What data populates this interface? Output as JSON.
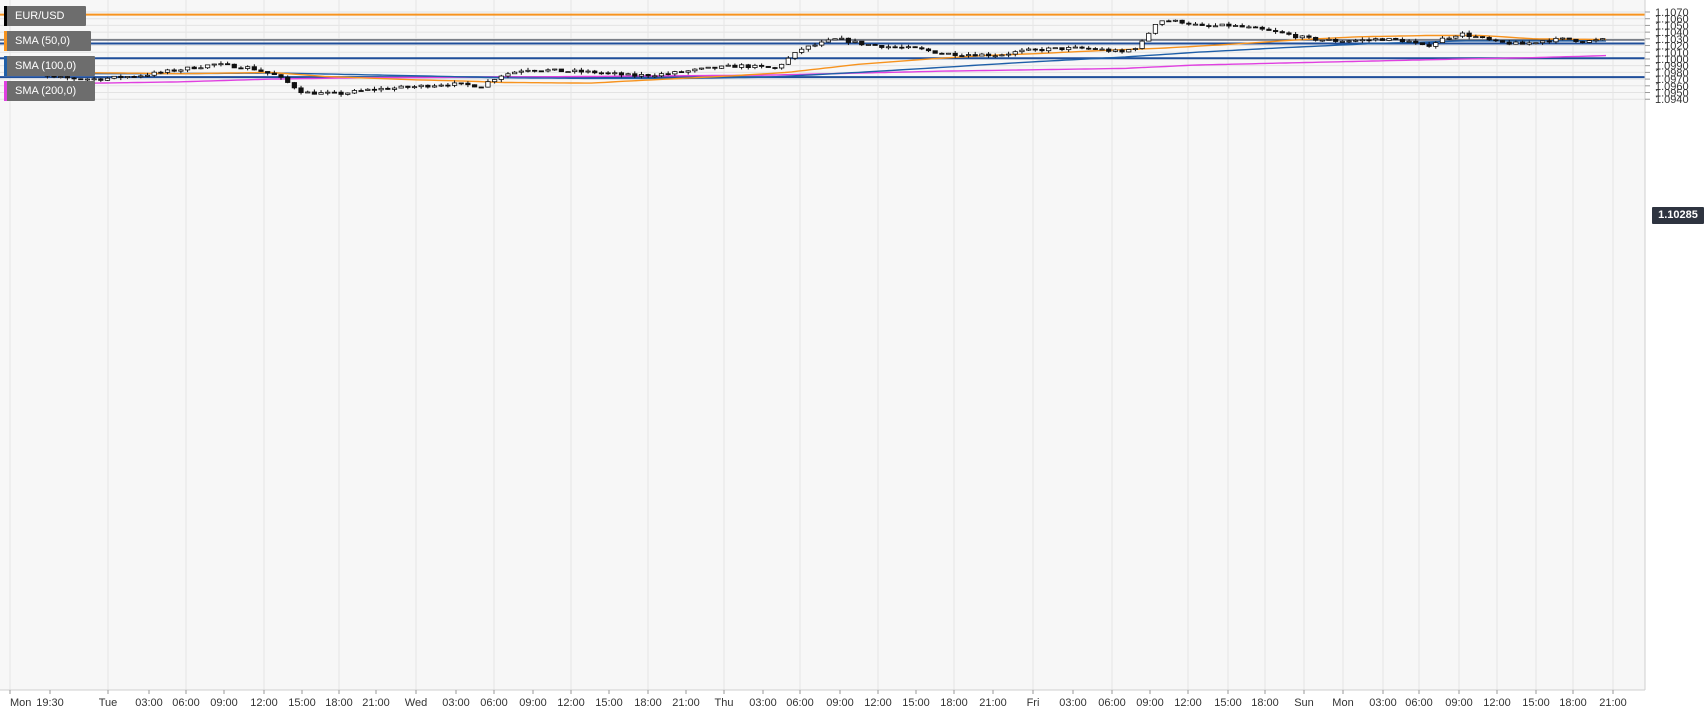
{
  "legend": [
    {
      "label": "EUR/USD",
      "color": "#000000"
    },
    {
      "label": "SMA (50,0)",
      "color": "#f7931e"
    },
    {
      "label": "SMA (100,0)",
      "color": "#1f5fa8"
    },
    {
      "label": "SMA (200,0)",
      "color": "#e040e0"
    }
  ],
  "price_tag": "1.10285",
  "chart_data": {
    "type": "candlestick",
    "title": "",
    "symbol": "EUR/USD",
    "grid": true,
    "ylim": [
      1.093,
      1.1072
    ],
    "y_ticks": [
      "1.1070",
      "1.1060",
      "1.1050",
      "1.1040",
      "1.1030",
      "1.1020",
      "1.1010",
      "1.1000",
      "1.0990",
      "1.0980",
      "1.0970",
      "1.0960",
      "1.0950",
      "1.0940"
    ],
    "x_ticks": [
      "Mon",
      "19:30",
      "Tue",
      "03:00",
      "06:00",
      "09:00",
      "12:00",
      "15:00",
      "18:00",
      "21:00",
      "Wed",
      "03:00",
      "06:00",
      "09:00",
      "12:00",
      "15:00",
      "18:00",
      "21:00",
      "Thu",
      "03:00",
      "06:00",
      "09:00",
      "12:00",
      "15:00",
      "18:00",
      "21:00",
      "Fri",
      "03:00",
      "06:00",
      "09:00",
      "12:00",
      "15:00",
      "18:00",
      "Sun",
      "Mon",
      "03:00",
      "06:00",
      "09:00",
      "12:00",
      "15:00",
      "18:00",
      "21:00"
    ],
    "horizontal_levels": [
      {
        "value": 1.1066,
        "color": "#f7931e"
      },
      {
        "value": 1.1028,
        "color": "#6a7aa0"
      },
      {
        "value": 1.1023,
        "color": "#1f4e9a"
      },
      {
        "value": 1.1001,
        "color": "#1f4e9a"
      },
      {
        "value": 1.0973,
        "color": "#1f4e9a"
      }
    ],
    "current_price": 1.10285,
    "waypoints": [
      [
        0,
        1.0985
      ],
      [
        6,
        1.0972
      ],
      [
        11,
        1.097
      ],
      [
        16,
        1.0976
      ],
      [
        20,
        1.0984
      ],
      [
        24,
        1.0992
      ],
      [
        28,
        1.0987
      ],
      [
        31,
        1.0975
      ],
      [
        34,
        1.095
      ],
      [
        38,
        1.0948
      ],
      [
        42,
        1.0955
      ],
      [
        46,
        1.0958
      ],
      [
        50,
        1.0963
      ],
      [
        54,
        1.096
      ],
      [
        56,
        1.0975
      ],
      [
        59,
        1.0985
      ],
      [
        63,
        1.0982
      ],
      [
        67,
        1.098
      ],
      [
        71,
        1.0975
      ],
      [
        75,
        1.0978
      ],
      [
        79,
        1.0985
      ],
      [
        83,
        1.099
      ],
      [
        87,
        1.0986
      ],
      [
        90,
        1.1015
      ],
      [
        94,
        1.103
      ],
      [
        97,
        1.1022
      ],
      [
        100,
        1.1018
      ],
      [
        103,
        1.1015
      ],
      [
        106,
        1.1008
      ],
      [
        109,
        1.1007
      ],
      [
        112,
        1.1006
      ],
      [
        115,
        1.1012
      ],
      [
        118,
        1.1015
      ],
      [
        121,
        1.1016
      ],
      [
        123,
        1.1015
      ],
      [
        126,
        1.101
      ],
      [
        128,
        1.102
      ],
      [
        130,
        1.1058
      ],
      [
        133,
        1.1055
      ],
      [
        135,
        1.1048
      ],
      [
        138,
        1.105
      ],
      [
        141,
        1.1045
      ],
      [
        144,
        1.1038
      ],
      [
        147,
        1.103
      ],
      [
        150,
        1.1027
      ],
      [
        153,
        1.1028
      ],
      [
        155,
        1.103
      ],
      [
        158,
        1.1027
      ],
      [
        160,
        1.1018
      ],
      [
        162,
        1.103
      ],
      [
        164,
        1.1038
      ],
      [
        166,
        1.1032
      ],
      [
        168,
        1.1025
      ],
      [
        171,
        1.1022
      ],
      [
        173,
        1.1027
      ],
      [
        176,
        1.103
      ],
      [
        178,
        1.1026
      ],
      [
        180,
        1.10285
      ]
    ],
    "sma50": [
      [
        0,
        1.0981
      ],
      [
        20,
        1.0978
      ],
      [
        30,
        1.098
      ],
      [
        36,
        1.0974
      ],
      [
        46,
        1.0969
      ],
      [
        52,
        1.0967
      ],
      [
        56,
        1.0965
      ],
      [
        66,
        1.0964
      ],
      [
        70,
        1.0967
      ],
      [
        76,
        1.0971
      ],
      [
        82,
        1.0975
      ],
      [
        88,
        1.098
      ],
      [
        96,
        1.0992
      ],
      [
        104,
        1.1
      ],
      [
        110,
        1.1005
      ],
      [
        116,
        1.1008
      ],
      [
        124,
        1.1013
      ],
      [
        130,
        1.1016
      ],
      [
        138,
        1.1022
      ],
      [
        146,
        1.1029
      ],
      [
        152,
        1.1033
      ],
      [
        160,
        1.1035
      ],
      [
        166,
        1.1035
      ],
      [
        172,
        1.103
      ],
      [
        180,
        1.1029
      ]
    ],
    "sma100": [
      [
        0,
        1.0978
      ],
      [
        16,
        1.0978
      ],
      [
        31,
        1.0979
      ],
      [
        46,
        1.0975
      ],
      [
        56,
        1.0972
      ],
      [
        66,
        1.0971
      ],
      [
        76,
        1.0971
      ],
      [
        86,
        1.0973
      ],
      [
        96,
        1.098
      ],
      [
        106,
        1.0988
      ],
      [
        116,
        1.0996
      ],
      [
        126,
        1.1003
      ],
      [
        134,
        1.101
      ],
      [
        144,
        1.1017
      ],
      [
        154,
        1.1023
      ],
      [
        164,
        1.1027
      ],
      [
        172,
        1.1027
      ],
      [
        180,
        1.1027
      ]
    ],
    "sma200": [
      [
        0,
        1.096
      ],
      [
        10,
        1.0964
      ],
      [
        20,
        1.0966
      ],
      [
        30,
        1.097
      ],
      [
        40,
        1.0972
      ],
      [
        56,
        1.0973
      ],
      [
        66,
        1.0974
      ],
      [
        76,
        1.0975
      ],
      [
        86,
        1.0976
      ],
      [
        96,
        1.0979
      ],
      [
        106,
        1.0982
      ],
      [
        116,
        1.0984
      ],
      [
        126,
        1.0986
      ],
      [
        134,
        1.0991
      ],
      [
        144,
        1.0994
      ],
      [
        154,
        1.0997
      ],
      [
        164,
        1.1
      ],
      [
        172,
        1.1002
      ],
      [
        180,
        1.1005
      ]
    ]
  }
}
